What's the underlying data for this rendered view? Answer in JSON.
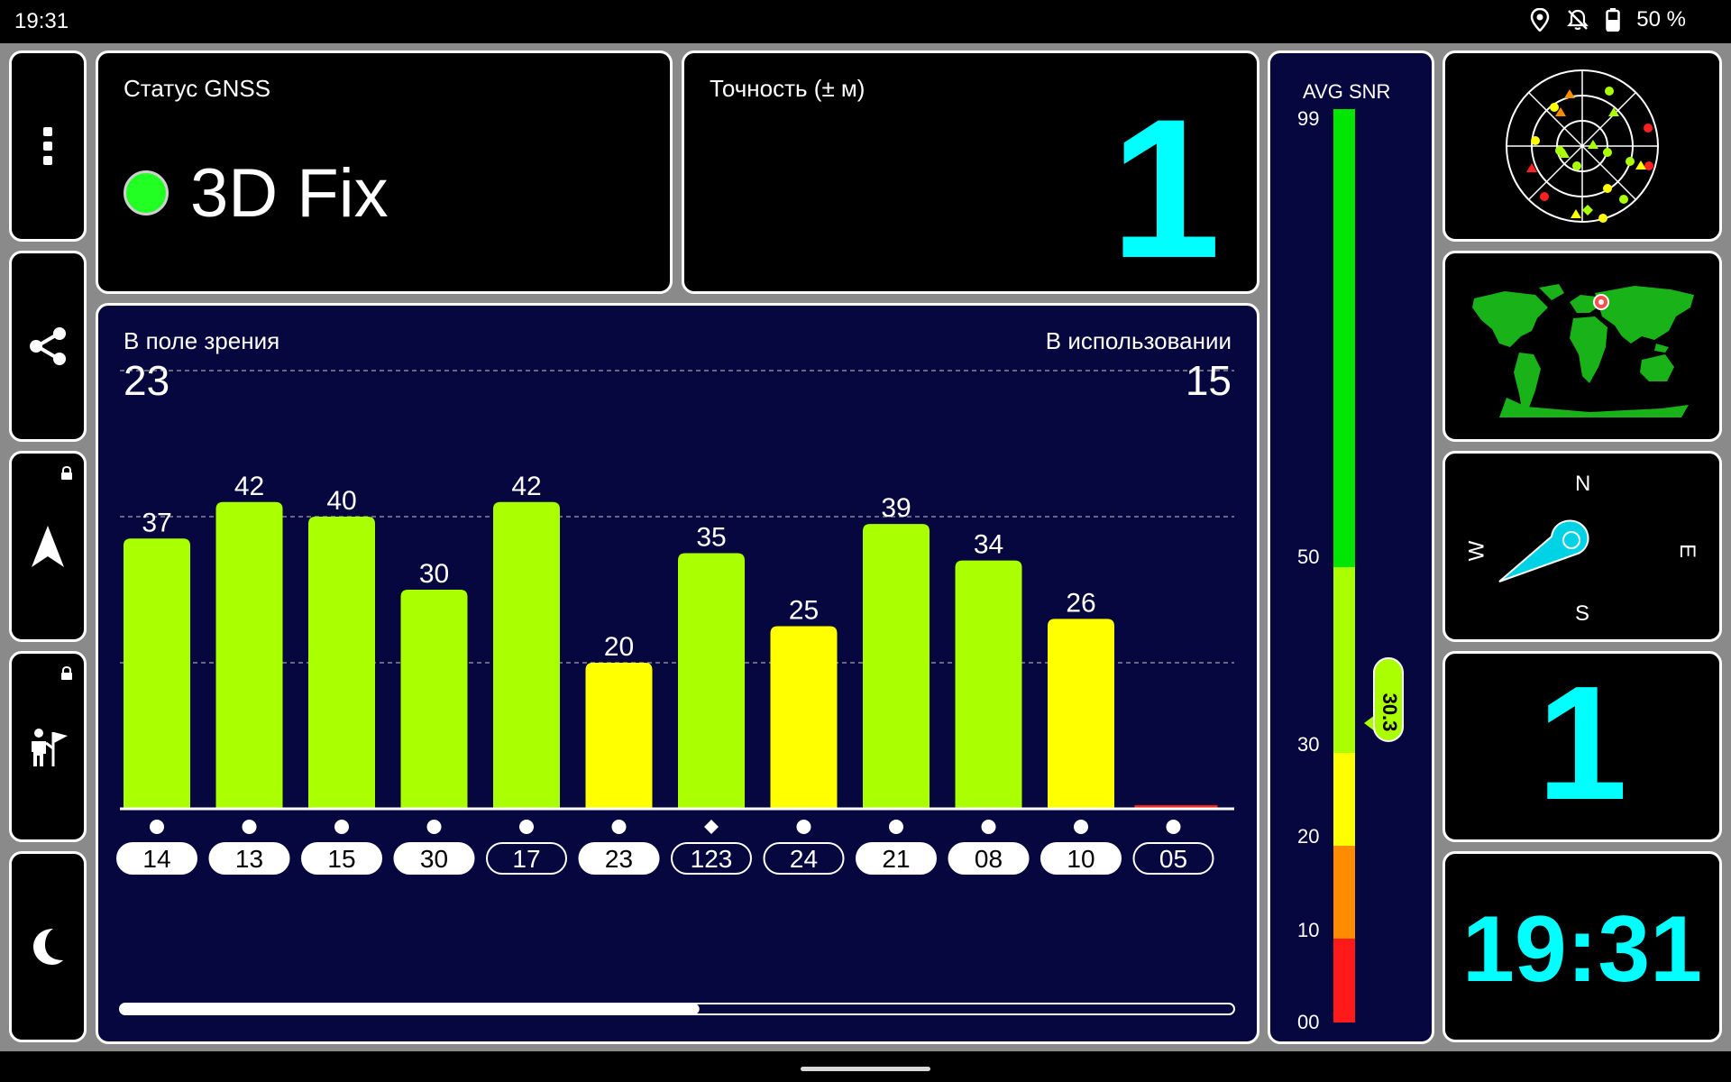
{
  "statusbar": {
    "time": "19:31",
    "battery": "50 %"
  },
  "gnss_status": {
    "title": "Статус GNSS",
    "value": "3D Fix",
    "dot_color": "#22ff22"
  },
  "accuracy": {
    "title": "Точность (± м)",
    "value": "1"
  },
  "satellites": {
    "in_view_label": "В поле зрения",
    "in_view_value": "23",
    "in_use_label": "В использовании",
    "in_use_value": "15",
    "scroll_progress": 0.52
  },
  "chart_data": {
    "type": "bar",
    "categories": [
      "14",
      "13",
      "15",
      "30",
      "17",
      "23",
      "123",
      "24",
      "21",
      "08",
      "10",
      "05"
    ],
    "values": [
      37,
      42,
      40,
      30,
      42,
      20,
      35,
      25,
      39,
      34,
      26,
      0
    ],
    "value_labels": [
      "37",
      "42",
      "40",
      "30",
      "42",
      "20",
      "35",
      "25",
      "39",
      "34",
      "26",
      ""
    ],
    "markers": [
      "circle",
      "circle",
      "circle",
      "circle",
      "circle",
      "circle",
      "diamond",
      "circle",
      "circle",
      "circle",
      "circle",
      "circle"
    ],
    "in_use": [
      true,
      true,
      true,
      true,
      false,
      true,
      false,
      false,
      true,
      true,
      true,
      false
    ],
    "colors": {
      "strong": "#aaff00",
      "medium": "#ffff00",
      "weak": "#ff2020"
    },
    "ylim": [
      0,
      60
    ],
    "gridlines": [
      20,
      40,
      60
    ],
    "grid": true
  },
  "snr_scale": {
    "title": "AVG SNR",
    "tick_labels": [
      "99",
      "50",
      "30",
      "20",
      "10",
      "00"
    ],
    "avg_value": "30.3",
    "segments": [
      {
        "color": "#00e600"
      },
      {
        "color": "#aaff00"
      },
      {
        "color": "#ffff00"
      },
      {
        "color": "#ff8c00"
      },
      {
        "color": "#ff1a1a"
      }
    ]
  },
  "compass": {
    "north": "N",
    "south": "S",
    "east": "E",
    "west": "W"
  },
  "sats_in_use_big": "1",
  "clock": "19:31"
}
